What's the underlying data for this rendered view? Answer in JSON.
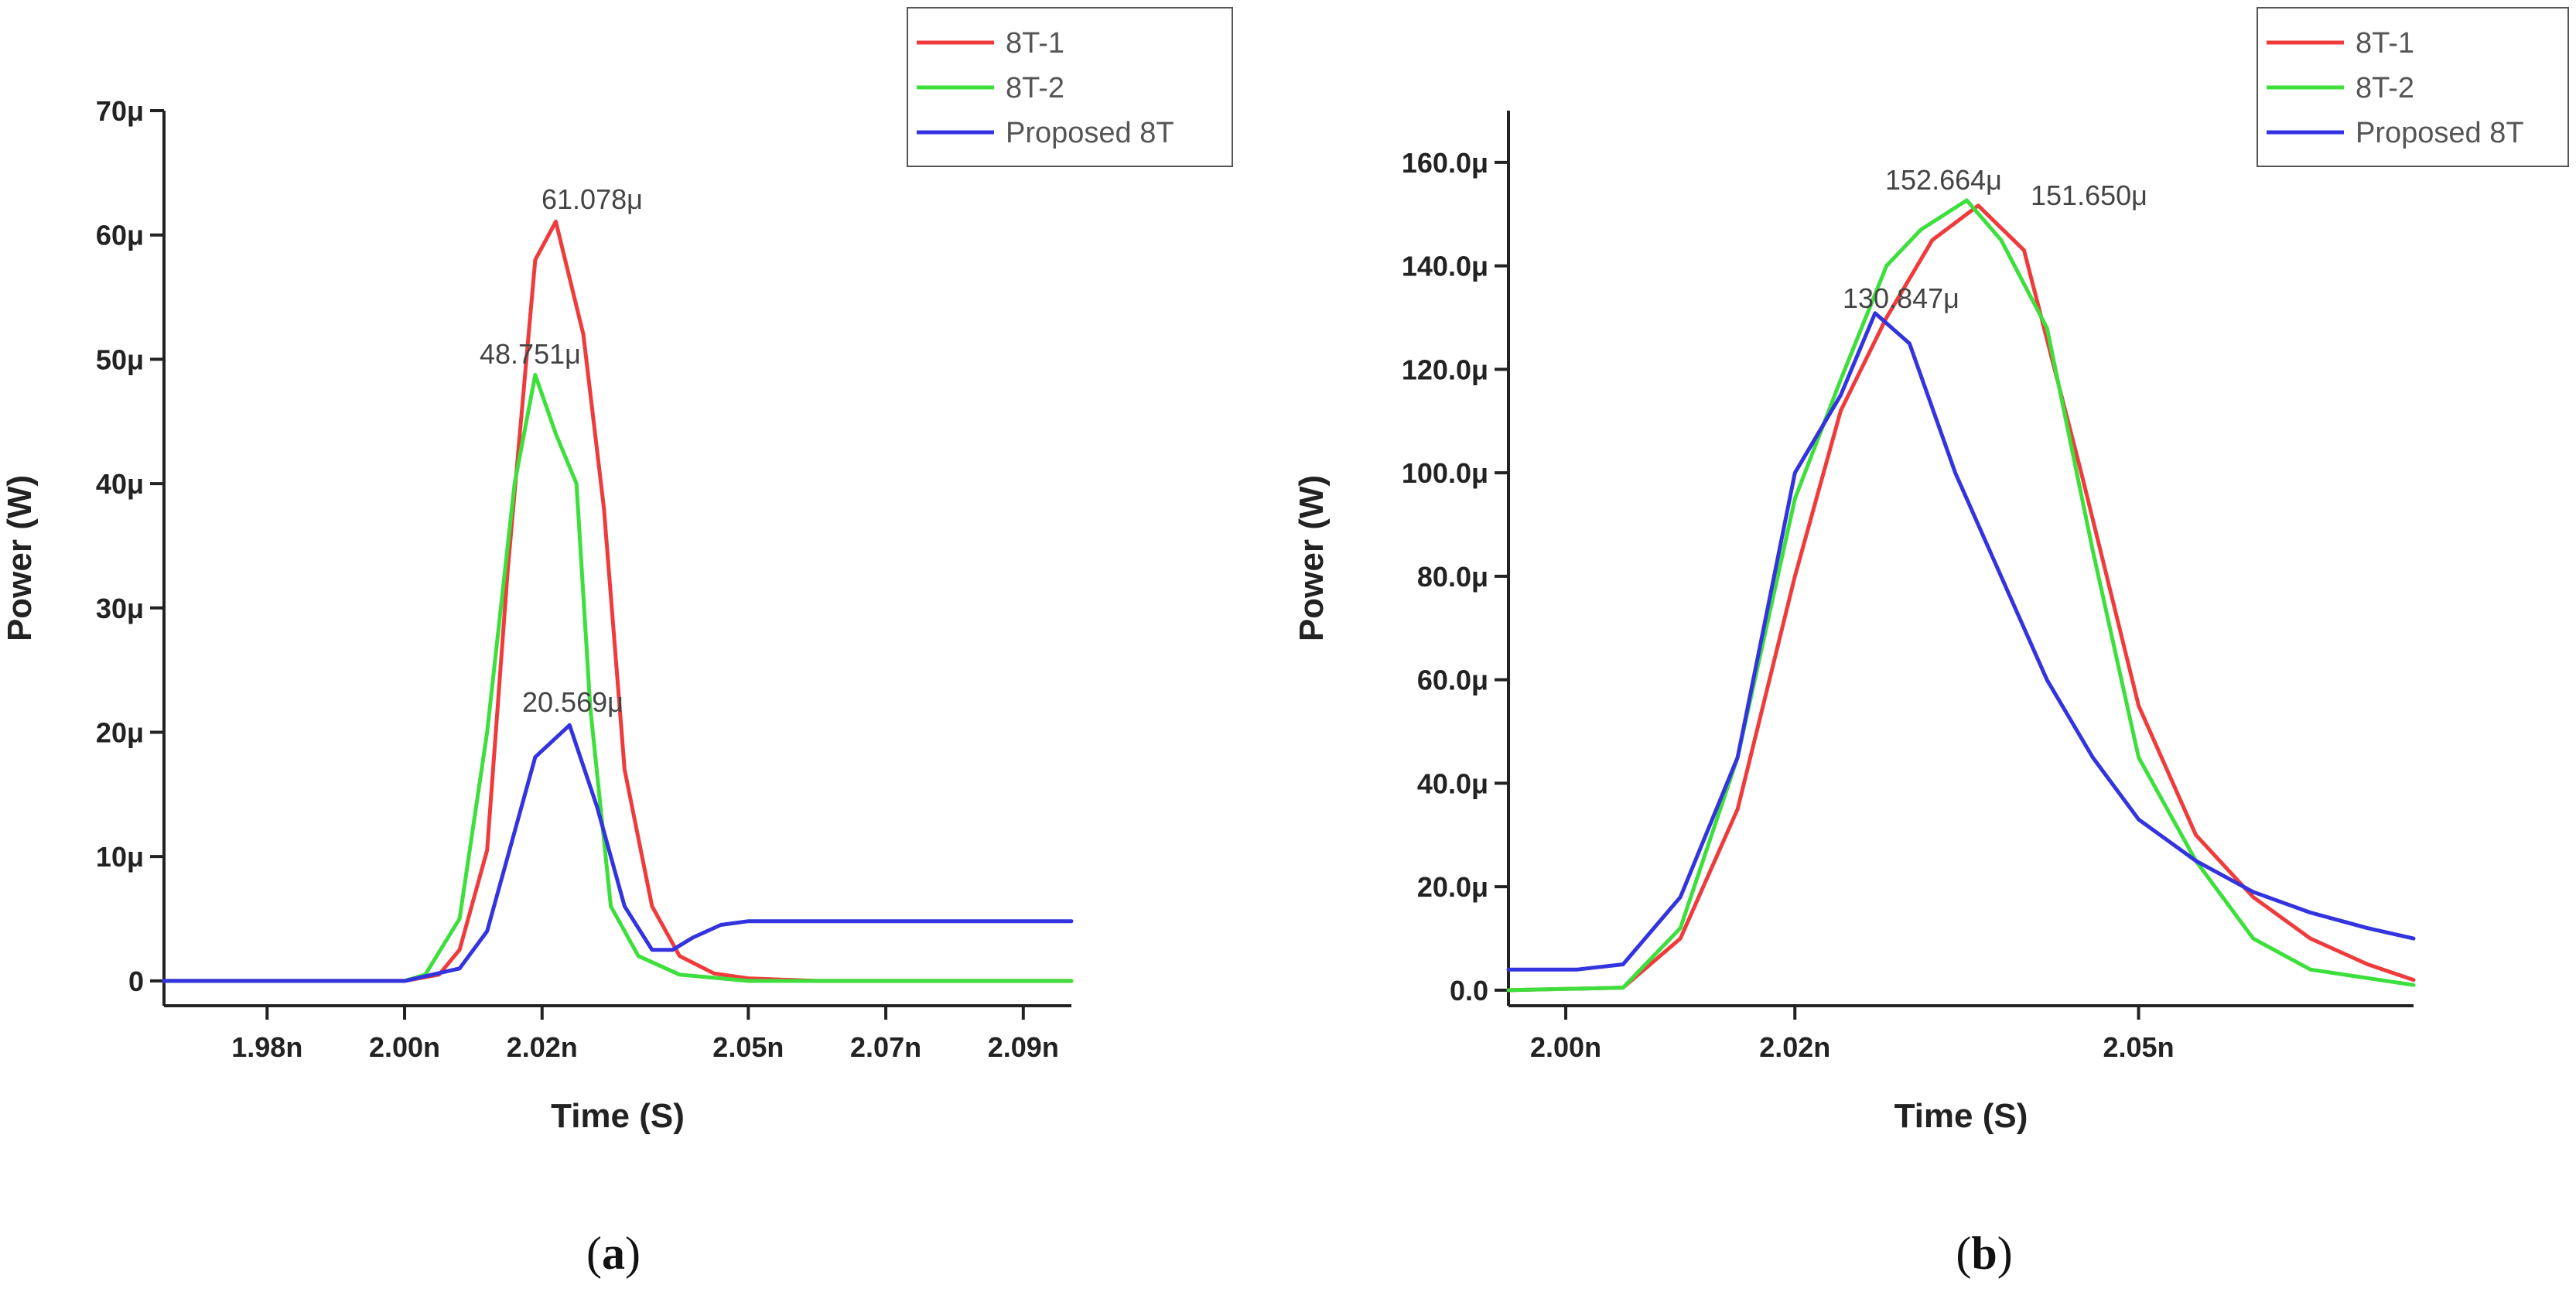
{
  "colors": {
    "red": "#ef3b3b",
    "green": "#3ddf3d",
    "blue": "#3333e0",
    "axis": "#222222"
  },
  "chart_data": [
    {
      "panel": "a",
      "type": "line",
      "xlabel": "Time (S)",
      "ylabel": "Power (W)",
      "xlim": [
        1.965,
        2.097
      ],
      "ylim": [
        -2,
        70
      ],
      "xticks": [
        1.98,
        2.0,
        2.02,
        2.05,
        2.07,
        2.09
      ],
      "xtick_labels": [
        "1.98n",
        "2.00n",
        "2.02n",
        "2.05n",
        "2.07n",
        "2.09n"
      ],
      "yticks": [
        0,
        10,
        20,
        30,
        40,
        50,
        60,
        70
      ],
      "ytick_labels": [
        "0",
        "10μ",
        "20μ",
        "30μ",
        "40μ",
        "50μ",
        "60μ",
        "70μ"
      ],
      "legend": [
        "8T-1",
        "8T-2",
        "Proposed 8T"
      ],
      "series": [
        {
          "name": "8T-1",
          "color": "#ef3b3b",
          "x": [
            1.965,
            2.0,
            2.005,
            2.008,
            2.012,
            2.015,
            2.019,
            2.022,
            2.026,
            2.029,
            2.032,
            2.036,
            2.04,
            2.045,
            2.05,
            2.06,
            2.097
          ],
          "y": [
            0,
            0,
            0.5,
            2.5,
            10.5,
            33,
            58,
            61.078,
            52,
            38,
            17,
            6,
            2,
            0.6,
            0.2,
            0,
            0
          ]
        },
        {
          "name": "8T-2",
          "color": "#3ddf3d",
          "x": [
            1.965,
            2.0,
            2.003,
            2.008,
            2.012,
            2.016,
            2.019,
            2.022,
            2.025,
            2.027,
            2.03,
            2.034,
            2.04,
            2.05,
            2.097
          ],
          "y": [
            0,
            0,
            0.5,
            5,
            20,
            40,
            48.751,
            44,
            40,
            22,
            6,
            2,
            0.5,
            0,
            0
          ]
        },
        {
          "name": "Proposed 8T",
          "color": "#3333e0",
          "x": [
            1.965,
            2.0,
            2.008,
            2.012,
            2.019,
            2.024,
            2.028,
            2.032,
            2.036,
            2.039,
            2.042,
            2.046,
            2.05,
            2.055,
            2.097
          ],
          "y": [
            0,
            0,
            1,
            4,
            18,
            20.569,
            14,
            6,
            2.5,
            2.5,
            3.5,
            4.5,
            4.8,
            4.8,
            4.8
          ]
        }
      ],
      "annotations": [
        {
          "text": "61.078μ",
          "x": 2.022,
          "y": 61.078
        },
        {
          "text": "48.751μ",
          "x": 2.019,
          "y": 48.751
        },
        {
          "text": "20.569μ",
          "x": 2.024,
          "y": 20.569
        }
      ],
      "label": "a"
    },
    {
      "panel": "b",
      "type": "line",
      "xlabel": "Time (S)",
      "ylabel": "Power (W)",
      "xlim": [
        1.995,
        2.074
      ],
      "ylim": [
        -3,
        170
      ],
      "xticks": [
        2.0,
        2.02,
        2.05
      ],
      "xtick_labels": [
        "2.00n",
        "2.02n",
        "2.05n"
      ],
      "yticks": [
        0,
        20,
        40,
        60,
        80,
        100,
        120,
        140,
        160
      ],
      "ytick_labels": [
        "0.0",
        "20.0μ",
        "40.0μ",
        "60.0μ",
        "80.0μ",
        "100.0μ",
        "120.0μ",
        "140.0μ",
        "160.0μ"
      ],
      "legend": [
        "8T-1",
        "8T-2",
        "Proposed 8T"
      ],
      "series": [
        {
          "name": "8T-1",
          "color": "#ef3b3b",
          "x": [
            1.995,
            2.005,
            2.01,
            2.015,
            2.02,
            2.024,
            2.028,
            2.032,
            2.036,
            2.04,
            2.045,
            2.05,
            2.055,
            2.06,
            2.065,
            2.07,
            2.074
          ],
          "y": [
            0,
            0.5,
            10,
            35,
            80,
            112,
            130,
            145,
            151.65,
            143,
            100,
            55,
            30,
            18,
            10,
            5,
            2
          ]
        },
        {
          "name": "8T-2",
          "color": "#3ddf3d",
          "x": [
            1.995,
            2.005,
            2.01,
            2.015,
            2.02,
            2.024,
            2.028,
            2.031,
            2.035,
            2.038,
            2.042,
            2.046,
            2.05,
            2.055,
            2.06,
            2.065,
            2.074
          ],
          "y": [
            0,
            0.5,
            12,
            45,
            95,
            118,
            140,
            147,
            152.664,
            145,
            128,
            85,
            45,
            25,
            10,
            4,
            1
          ]
        },
        {
          "name": "Proposed 8T",
          "color": "#3333e0",
          "x": [
            1.995,
            2.001,
            2.005,
            2.01,
            2.015,
            2.02,
            2.024,
            2.027,
            2.03,
            2.034,
            2.038,
            2.042,
            2.046,
            2.05,
            2.055,
            2.06,
            2.065,
            2.07,
            2.074
          ],
          "y": [
            4,
            4,
            5,
            18,
            45,
            100,
            115,
            130.847,
            125,
            100,
            80,
            60,
            45,
            33,
            25,
            19,
            15,
            12,
            10
          ]
        }
      ],
      "annotations": [
        {
          "text": "152.664μ",
          "x": 2.035,
          "y": 152.664
        },
        {
          "text": "151.650μ",
          "x": 2.036,
          "y": 151.65
        },
        {
          "text": "130.847μ",
          "x": 2.027,
          "y": 130.847
        }
      ],
      "label": "b"
    }
  ]
}
